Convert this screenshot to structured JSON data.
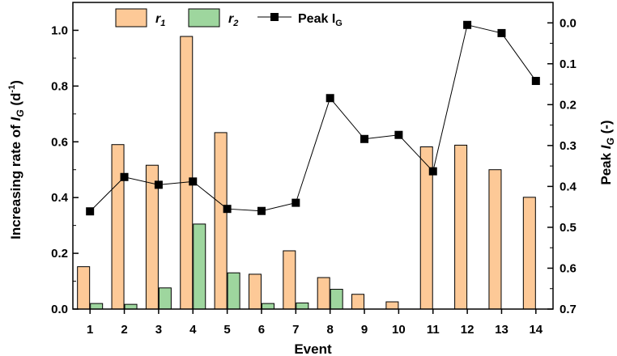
{
  "chart_data": {
    "type": "bar",
    "categories": [
      "1",
      "2",
      "3",
      "4",
      "5",
      "6",
      "7",
      "8",
      "9",
      "10",
      "11",
      "12",
      "13",
      "14"
    ],
    "xlabel": "Event",
    "ylabel_left": {
      "pre": "Increasing rate of ",
      "sym": "I",
      "sub": "G",
      "post": " (d",
      "sup": "-1",
      "end": ")"
    },
    "ylabel_right": {
      "pre": "Peak ",
      "sym": "I",
      "sub": "G",
      "post": " (-)"
    },
    "left_axis": {
      "range": [
        0,
        1.1
      ],
      "ticks": [
        "0.0",
        "0.2",
        "0.4",
        "0.6",
        "0.8",
        "1.0"
      ]
    },
    "right_axis": {
      "range": [
        0.7,
        -0.05
      ],
      "inverted": true,
      "ticks": [
        "0.0",
        "0.1",
        "0.2",
        "0.3",
        "0.4",
        "0.5",
        "0.6",
        "0.7"
      ]
    },
    "series": [
      {
        "name": "r",
        "name_sub": "1",
        "axis": "left",
        "kind": "bar",
        "color": "#FDC997",
        "values": [
          0.152,
          0.59,
          0.516,
          0.978,
          0.633,
          0.125,
          0.209,
          0.113,
          0.053,
          0.026,
          0.582,
          0.588,
          0.5,
          0.401
        ]
      },
      {
        "name": "r",
        "name_sub": "2",
        "axis": "left",
        "kind": "bar",
        "color": "#9ED69E",
        "values": [
          0.02,
          0.017,
          0.076,
          0.305,
          0.13,
          0.02,
          0.022,
          0.071,
          null,
          null,
          null,
          null,
          null,
          null
        ]
      },
      {
        "name": "Peak I",
        "name_sub": "G",
        "axis": "right",
        "kind": "line-marker",
        "color": "#000000",
        "values": [
          0.461,
          0.377,
          0.396,
          0.388,
          0.455,
          0.46,
          0.44,
          0.184,
          0.284,
          0.274,
          0.363,
          0.005,
          0.025,
          0.142
        ]
      }
    ],
    "legend_position": "top-left",
    "grid": false
  }
}
